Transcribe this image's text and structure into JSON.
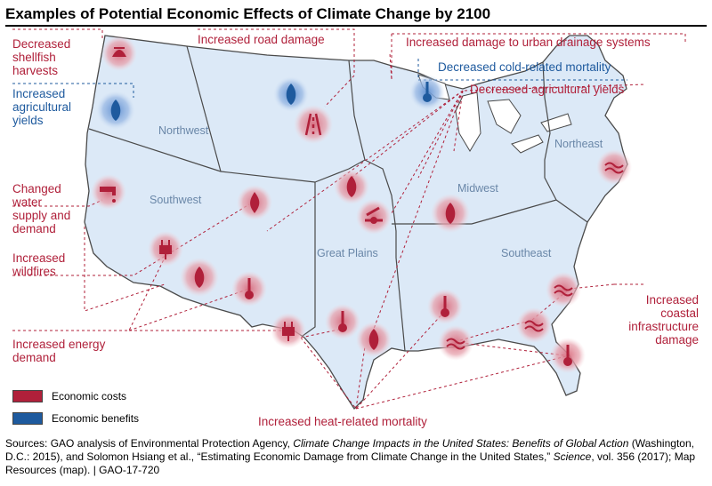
{
  "title": "Examples of Potential Economic Effects of Climate Change by 2100",
  "colors": {
    "cost": "#b0203a",
    "benefit": "#1e5a9e",
    "land": "#dce9f7",
    "border": "#4a4a4a"
  },
  "effects": {
    "shellfish": [
      "Decreased",
      "shellfish",
      "harvests"
    ],
    "road": "Increased road damage",
    "drainage": "Increased damage to urban drainage systems",
    "cold": "Decreased cold-related mortality",
    "agri_benefit": [
      "Increased",
      "agricultural",
      "yields"
    ],
    "agri_cost": "Decreased agricultural yields",
    "water": [
      "Changed",
      "water",
      "supply and",
      "demand"
    ],
    "wildfires": [
      "Increased",
      "wildfires"
    ],
    "energy": [
      "Increased energy",
      "demand"
    ],
    "heat": "Increased heat-related mortality",
    "coastal": [
      "Increased",
      "coastal",
      "infrastructure",
      "damage"
    ]
  },
  "regions": {
    "northwest": "Northwest",
    "southwest": "Southwest",
    "great_plains": "Great Plains",
    "midwest": "Midwest",
    "northeast": "Northeast",
    "southeast": "Southeast"
  },
  "legend": {
    "costs": "Economic costs",
    "benefits": "Economic benefits"
  },
  "sources": {
    "part1": "Sources: GAO analysis of Environmental Protection Agency, ",
    "italic1": "Climate Change Impacts in the United States: Benefits of Global Action",
    "part2": " (Washington, D.C.: 2015), and Solomon Hsiang et al., “Estimating Economic Damage from Climate Change in the United States,” ",
    "italic2": "Science",
    "part3": ", vol. 356 (2017); Map Resources (map).  |  GAO-17-720"
  },
  "icons": [
    {
      "name": "shellfish-icon",
      "effect": "cost"
    },
    {
      "name": "corn-icon",
      "effect": "benefit"
    },
    {
      "name": "corn-icon",
      "effect": "benefit"
    },
    {
      "name": "road-icon",
      "effect": "cost"
    },
    {
      "name": "drainage-icon",
      "effect": "benefit"
    },
    {
      "name": "faucet-icon",
      "effect": "cost"
    },
    {
      "name": "fire-icon",
      "effect": "cost"
    },
    {
      "name": "plug-icon",
      "effect": "cost"
    },
    {
      "name": "corn-icon",
      "effect": "cost"
    },
    {
      "name": "thermometer-icon",
      "effect": "cost"
    },
    {
      "name": "plug-icon",
      "effect": "cost"
    },
    {
      "name": "thermometer-icon",
      "effect": "cost"
    },
    {
      "name": "corn-icon",
      "effect": "cost"
    },
    {
      "name": "drainage-icon",
      "effect": "cost"
    },
    {
      "name": "corn-icon",
      "effect": "cost"
    },
    {
      "name": "thermometer-icon",
      "effect": "cost"
    },
    {
      "name": "waves-icon",
      "effect": "cost"
    },
    {
      "name": "waves-icon",
      "effect": "cost"
    },
    {
      "name": "waves-icon",
      "effect": "cost"
    },
    {
      "name": "waves-icon",
      "effect": "cost"
    },
    {
      "name": "thermometer-icon",
      "effect": "cost"
    },
    {
      "name": "corn-icon",
      "effect": "cost"
    }
  ]
}
